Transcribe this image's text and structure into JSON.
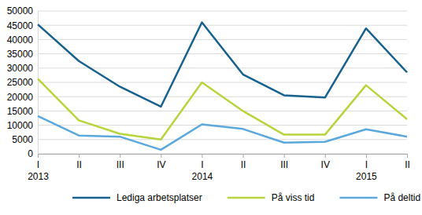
{
  "chart_data": {
    "type": "line",
    "categories": [
      "I\n2013",
      "II",
      "III",
      "IV",
      "I\n2014",
      "II",
      "III",
      "IV",
      "I\n2015",
      "II"
    ],
    "series": [
      {
        "name": "Lediga arbetsplatser",
        "color": "#17618f",
        "values": [
          45300,
          32500,
          23500,
          16500,
          46000,
          27800,
          20500,
          19700,
          43900,
          28500
        ]
      },
      {
        "name": "På viss tid",
        "color": "#b8d43c",
        "values": [
          26300,
          11700,
          7000,
          5000,
          25000,
          15000,
          6700,
          6700,
          24000,
          12100
        ]
      },
      {
        "name": "På deltid",
        "color": "#5aa8de",
        "values": [
          13200,
          6400,
          6000,
          1400,
          10300,
          8700,
          3900,
          4200,
          8600,
          6000
        ]
      }
    ],
    "ylim": [
      0,
      50000
    ],
    "yticks": [
      0,
      5000,
      10000,
      15000,
      20000,
      25000,
      30000,
      35000,
      40000,
      45000,
      50000
    ],
    "grid": true,
    "legend": "bottom"
  }
}
